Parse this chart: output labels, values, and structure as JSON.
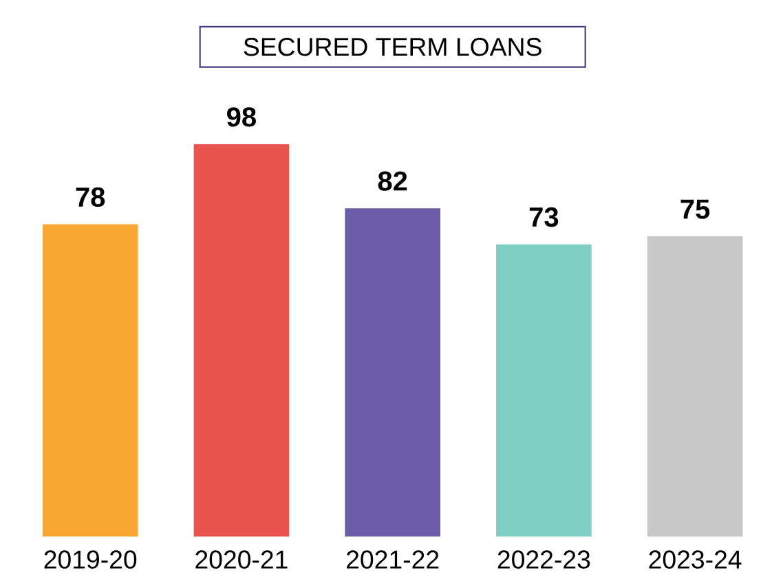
{
  "chart_data": {
    "type": "bar",
    "title": "SECURED TERM LOANS",
    "categories": [
      "2019-20",
      "2020-21",
      "2021-22",
      "2022-23",
      "2023-24"
    ],
    "values": [
      78,
      98,
      82,
      73,
      75
    ],
    "colors": [
      "#f7a731",
      "#e8534b",
      "#6a5ca8",
      "#7fcfc4",
      "#c8c8c8"
    ],
    "data_labels": true
  }
}
